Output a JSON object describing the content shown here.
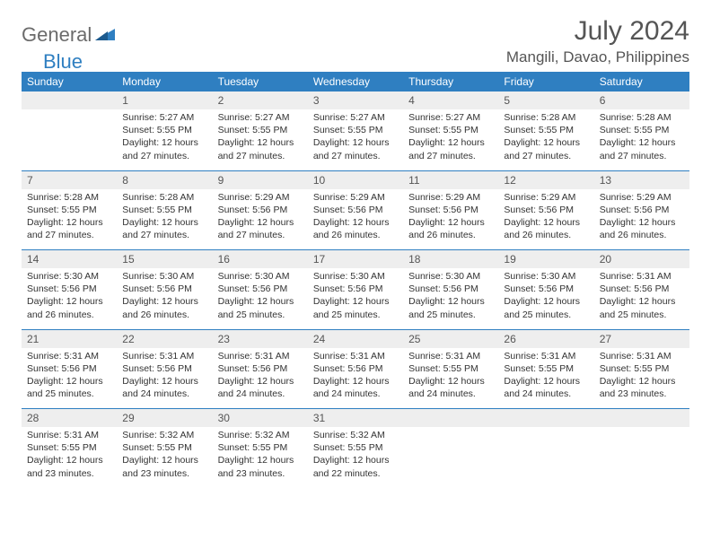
{
  "logo": {
    "part1": "General",
    "part2": "Blue"
  },
  "title": "July 2024",
  "location": "Mangili, Davao, Philippines",
  "colors": {
    "accent": "#2f7fc1",
    "header_bg": "#2f7fc1",
    "daynum_bg": "#eeeeee",
    "text": "#333333",
    "muted": "#555555",
    "page_bg": "#ffffff"
  },
  "day_names": [
    "Sunday",
    "Monday",
    "Tuesday",
    "Wednesday",
    "Thursday",
    "Friday",
    "Saturday"
  ],
  "weeks": [
    {
      "nums": [
        "",
        "1",
        "2",
        "3",
        "4",
        "5",
        "6"
      ],
      "cells": [
        [],
        [
          "Sunrise: 5:27 AM",
          "Sunset: 5:55 PM",
          "Daylight: 12 hours",
          "and 27 minutes."
        ],
        [
          "Sunrise: 5:27 AM",
          "Sunset: 5:55 PM",
          "Daylight: 12 hours",
          "and 27 minutes."
        ],
        [
          "Sunrise: 5:27 AM",
          "Sunset: 5:55 PM",
          "Daylight: 12 hours",
          "and 27 minutes."
        ],
        [
          "Sunrise: 5:27 AM",
          "Sunset: 5:55 PM",
          "Daylight: 12 hours",
          "and 27 minutes."
        ],
        [
          "Sunrise: 5:28 AM",
          "Sunset: 5:55 PM",
          "Daylight: 12 hours",
          "and 27 minutes."
        ],
        [
          "Sunrise: 5:28 AM",
          "Sunset: 5:55 PM",
          "Daylight: 12 hours",
          "and 27 minutes."
        ]
      ]
    },
    {
      "nums": [
        "7",
        "8",
        "9",
        "10",
        "11",
        "12",
        "13"
      ],
      "cells": [
        [
          "Sunrise: 5:28 AM",
          "Sunset: 5:55 PM",
          "Daylight: 12 hours",
          "and 27 minutes."
        ],
        [
          "Sunrise: 5:28 AM",
          "Sunset: 5:55 PM",
          "Daylight: 12 hours",
          "and 27 minutes."
        ],
        [
          "Sunrise: 5:29 AM",
          "Sunset: 5:56 PM",
          "Daylight: 12 hours",
          "and 27 minutes."
        ],
        [
          "Sunrise: 5:29 AM",
          "Sunset: 5:56 PM",
          "Daylight: 12 hours",
          "and 26 minutes."
        ],
        [
          "Sunrise: 5:29 AM",
          "Sunset: 5:56 PM",
          "Daylight: 12 hours",
          "and 26 minutes."
        ],
        [
          "Sunrise: 5:29 AM",
          "Sunset: 5:56 PM",
          "Daylight: 12 hours",
          "and 26 minutes."
        ],
        [
          "Sunrise: 5:29 AM",
          "Sunset: 5:56 PM",
          "Daylight: 12 hours",
          "and 26 minutes."
        ]
      ]
    },
    {
      "nums": [
        "14",
        "15",
        "16",
        "17",
        "18",
        "19",
        "20"
      ],
      "cells": [
        [
          "Sunrise: 5:30 AM",
          "Sunset: 5:56 PM",
          "Daylight: 12 hours",
          "and 26 minutes."
        ],
        [
          "Sunrise: 5:30 AM",
          "Sunset: 5:56 PM",
          "Daylight: 12 hours",
          "and 26 minutes."
        ],
        [
          "Sunrise: 5:30 AM",
          "Sunset: 5:56 PM",
          "Daylight: 12 hours",
          "and 25 minutes."
        ],
        [
          "Sunrise: 5:30 AM",
          "Sunset: 5:56 PM",
          "Daylight: 12 hours",
          "and 25 minutes."
        ],
        [
          "Sunrise: 5:30 AM",
          "Sunset: 5:56 PM",
          "Daylight: 12 hours",
          "and 25 minutes."
        ],
        [
          "Sunrise: 5:30 AM",
          "Sunset: 5:56 PM",
          "Daylight: 12 hours",
          "and 25 minutes."
        ],
        [
          "Sunrise: 5:31 AM",
          "Sunset: 5:56 PM",
          "Daylight: 12 hours",
          "and 25 minutes."
        ]
      ]
    },
    {
      "nums": [
        "21",
        "22",
        "23",
        "24",
        "25",
        "26",
        "27"
      ],
      "cells": [
        [
          "Sunrise: 5:31 AM",
          "Sunset: 5:56 PM",
          "Daylight: 12 hours",
          "and 25 minutes."
        ],
        [
          "Sunrise: 5:31 AM",
          "Sunset: 5:56 PM",
          "Daylight: 12 hours",
          "and 24 minutes."
        ],
        [
          "Sunrise: 5:31 AM",
          "Sunset: 5:56 PM",
          "Daylight: 12 hours",
          "and 24 minutes."
        ],
        [
          "Sunrise: 5:31 AM",
          "Sunset: 5:56 PM",
          "Daylight: 12 hours",
          "and 24 minutes."
        ],
        [
          "Sunrise: 5:31 AM",
          "Sunset: 5:55 PM",
          "Daylight: 12 hours",
          "and 24 minutes."
        ],
        [
          "Sunrise: 5:31 AM",
          "Sunset: 5:55 PM",
          "Daylight: 12 hours",
          "and 24 minutes."
        ],
        [
          "Sunrise: 5:31 AM",
          "Sunset: 5:55 PM",
          "Daylight: 12 hours",
          "and 23 minutes."
        ]
      ]
    },
    {
      "nums": [
        "28",
        "29",
        "30",
        "31",
        "",
        "",
        ""
      ],
      "cells": [
        [
          "Sunrise: 5:31 AM",
          "Sunset: 5:55 PM",
          "Daylight: 12 hours",
          "and 23 minutes."
        ],
        [
          "Sunrise: 5:32 AM",
          "Sunset: 5:55 PM",
          "Daylight: 12 hours",
          "and 23 minutes."
        ],
        [
          "Sunrise: 5:32 AM",
          "Sunset: 5:55 PM",
          "Daylight: 12 hours",
          "and 23 minutes."
        ],
        [
          "Sunrise: 5:32 AM",
          "Sunset: 5:55 PM",
          "Daylight: 12 hours",
          "and 22 minutes."
        ],
        [],
        [],
        []
      ]
    }
  ]
}
